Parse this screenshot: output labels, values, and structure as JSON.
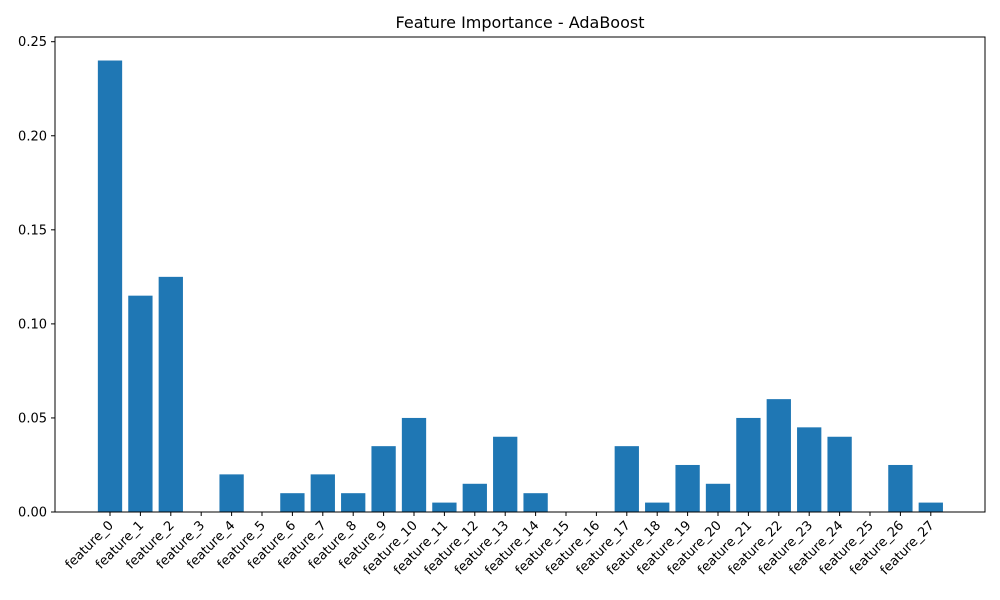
{
  "chart_data": {
    "type": "bar",
    "title": "Feature Importance - AdaBoost",
    "xlabel": "",
    "ylabel": "",
    "ylim": [
      0,
      0.2525
    ],
    "yticks": [
      "0.00",
      "0.05",
      "0.10",
      "0.15",
      "0.20",
      "0.25"
    ],
    "categories": [
      "feature_0",
      "feature_1",
      "feature_2",
      "feature_3",
      "feature_4",
      "feature_5",
      "feature_6",
      "feature_7",
      "feature_8",
      "feature_9",
      "feature_10",
      "feature_11",
      "feature_12",
      "feature_13",
      "feature_14",
      "feature_15",
      "feature_16",
      "feature_17",
      "feature_18",
      "feature_19",
      "feature_20",
      "feature_21",
      "feature_22",
      "feature_23",
      "feature_24",
      "feature_25",
      "feature_26",
      "feature_27"
    ],
    "values": [
      0.24,
      0.115,
      0.125,
      0.0,
      0.02,
      0.0,
      0.01,
      0.02,
      0.01,
      0.035,
      0.05,
      0.005,
      0.015,
      0.04,
      0.01,
      0.0,
      0.0,
      0.035,
      0.005,
      0.025,
      0.015,
      0.05,
      0.06,
      0.045,
      0.04,
      0.0,
      0.025,
      0.005
    ],
    "bar_color": "#1f77b4",
    "grid": false,
    "legend": "none",
    "x_tick_rotation": "45"
  }
}
